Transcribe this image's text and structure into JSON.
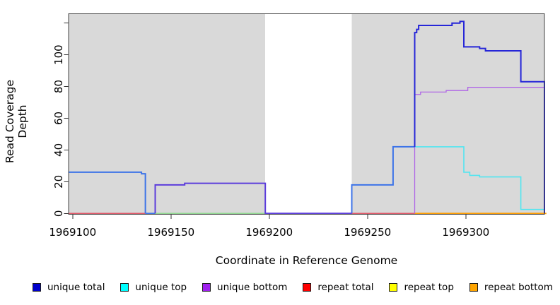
{
  "chart_data": {
    "type": "line",
    "step": true,
    "title": "",
    "xlabel": "Coordinate in Reference Genome",
    "ylabel": "Read Coverage Depth",
    "xlim": [
      1969098,
      1969340
    ],
    "ylim": [
      0,
      125
    ],
    "grid": false,
    "panel": {
      "background_color": "#d9d9d9",
      "gap_region": [
        1969198,
        1969242
      ],
      "gap_color": "#ffffff",
      "border_color": "#444444"
    },
    "x_ticks": [
      {
        "value": 1969100,
        "label": "1969100"
      },
      {
        "value": 1969150,
        "label": "1969150"
      },
      {
        "value": 1969200,
        "label": "1969200"
      },
      {
        "value": 1969250,
        "label": "1969250"
      },
      {
        "value": 1969300,
        "label": "1969300"
      }
    ],
    "y_ticks": [
      {
        "value": 0,
        "label": "0"
      },
      {
        "value": 20,
        "label": "20"
      },
      {
        "value": 40,
        "label": "40"
      },
      {
        "value": 60,
        "label": "60"
      },
      {
        "value": 80,
        "label": "80"
      },
      {
        "value": 100,
        "label": "100"
      },
      {
        "value": 120,
        "label": ""
      }
    ],
    "series": [
      {
        "name": "unique total",
        "color": "#0000cc",
        "points": [
          [
            1969098,
            26
          ],
          [
            1969135,
            25
          ],
          [
            1969137,
            0
          ],
          [
            1969198,
            0
          ],
          [
            1969242,
            18
          ],
          [
            1969263,
            42
          ],
          [
            1969274,
            114
          ],
          [
            1969275,
            116
          ],
          [
            1969277,
            118.5
          ],
          [
            1969293,
            120
          ],
          [
            1969297,
            121
          ],
          [
            1969299,
            105
          ],
          [
            1969307,
            104
          ],
          [
            1969310,
            102.5
          ],
          [
            1969328,
            83
          ],
          [
            1969340,
            0
          ]
        ]
      },
      {
        "name": "unique top",
        "color": "#00ffff",
        "points": [
          [
            1969274,
            42
          ],
          [
            1969299,
            26
          ],
          [
            1969302,
            24
          ],
          [
            1969307,
            23
          ],
          [
            1969328,
            2.5
          ],
          [
            1969340,
            2.5
          ]
        ]
      },
      {
        "name": "unique bottom",
        "color": "#a020f0",
        "points": [
          [
            1969142,
            18
          ],
          [
            1969157,
            19
          ],
          [
            1969198,
            0
          ],
          [
            1969242,
            0
          ],
          [
            1969274,
            75
          ],
          [
            1969277,
            76.5
          ],
          [
            1969290,
            77.5
          ],
          [
            1969301,
            79.5
          ],
          [
            1969340,
            79.5
          ]
        ]
      },
      {
        "name": "repeat total",
        "color": "#ff0000",
        "points": [
          [
            1969098,
            0
          ],
          [
            1969340,
            0
          ]
        ]
      },
      {
        "name": "repeat top",
        "color": "#ffff00",
        "points": [
          [
            1969142,
            0
          ],
          [
            1969198,
            0
          ]
        ]
      },
      {
        "name": "repeat bottom",
        "color": "#ffa500",
        "points": [
          [
            1969274,
            0
          ],
          [
            1969340,
            0
          ]
        ]
      }
    ],
    "rendered_segments": [
      {
        "name": "repeat-total-zero-left",
        "color": "#e05868",
        "width": 1.6,
        "points": [
          [
            1969098,
            0
          ],
          [
            1969137,
            0
          ]
        ]
      },
      {
        "name": "unique-total-zero-notch",
        "color": "#3d74e8",
        "width": 1.8,
        "points": [
          [
            1969137,
            0
          ],
          [
            1969142,
            0
          ]
        ]
      },
      {
        "name": "repeat-top-over-unique-top-zero",
        "color": "#90d890",
        "width": 1.6,
        "points": [
          [
            1969142,
            0
          ],
          [
            1969198,
            0
          ]
        ]
      },
      {
        "name": "repeat-total-zero-mid",
        "color": "#e05868",
        "width": 1.6,
        "points": [
          [
            1969242,
            0
          ],
          [
            1969274,
            0
          ]
        ]
      },
      {
        "name": "repeat-bottom-zero-right",
        "color": "#ff9d00",
        "width": 1.8,
        "points": [
          [
            1969274,
            0
          ],
          [
            1969341,
            0
          ]
        ]
      },
      {
        "name": "unique-top-steps",
        "color": "#52e5f0",
        "width": 1.6,
        "points": [
          [
            1969274,
            42
          ],
          [
            1969299,
            42
          ],
          [
            1969299,
            26
          ],
          [
            1969302,
            26
          ],
          [
            1969302,
            24
          ],
          [
            1969307,
            24
          ],
          [
            1969307,
            23
          ],
          [
            1969328,
            23
          ],
          [
            1969328,
            2.5
          ],
          [
            1969340,
            2.5
          ]
        ]
      },
      {
        "name": "unique-bottom-steps",
        "color": "#b066e6",
        "width": 1.3,
        "points": [
          [
            1969274,
            0
          ],
          [
            1969274,
            75
          ],
          [
            1969277,
            75
          ],
          [
            1969277,
            76.5
          ],
          [
            1969290,
            76.5
          ],
          [
            1969290,
            77.5
          ],
          [
            1969301,
            77.5
          ],
          [
            1969301,
            79.5
          ],
          [
            1969340,
            79.5
          ]
        ]
      },
      {
        "name": "unique-total-left-plateau",
        "color": "#3d74e8",
        "width": 2,
        "points": [
          [
            1969098,
            26
          ],
          [
            1969135,
            26
          ],
          [
            1969135,
            25
          ],
          [
            1969137,
            25
          ],
          [
            1969137,
            0
          ]
        ]
      },
      {
        "name": "unique-total-right-rise",
        "color": "#3d74e8",
        "width": 2,
        "points": [
          [
            1969242,
            0
          ],
          [
            1969242,
            18
          ],
          [
            1969263,
            18
          ],
          [
            1969263,
            42
          ],
          [
            1969274,
            42
          ]
        ]
      },
      {
        "name": "unique-total-over-bottom-mid",
        "color": "#5c3ddb",
        "width": 2,
        "points": [
          [
            1969142,
            0
          ],
          [
            1969142,
            18
          ],
          [
            1969157,
            18
          ],
          [
            1969157,
            19
          ],
          [
            1969198,
            19
          ],
          [
            1969198,
            0
          ],
          [
            1969242,
            0
          ]
        ]
      },
      {
        "name": "unique-total-peak",
        "color": "#2626d8",
        "width": 2,
        "points": [
          [
            1969274,
            42
          ],
          [
            1969274,
            114
          ],
          [
            1969275,
            114
          ],
          [
            1969275,
            116
          ],
          [
            1969276,
            116
          ],
          [
            1969276,
            118.5
          ],
          [
            1969293,
            118.5
          ],
          [
            1969293,
            120
          ],
          [
            1969297,
            120
          ],
          [
            1969297,
            121
          ],
          [
            1969299,
            121
          ],
          [
            1969299,
            105
          ],
          [
            1969307,
            105
          ],
          [
            1969307,
            104
          ],
          [
            1969310,
            104
          ],
          [
            1969310,
            102.5
          ],
          [
            1969328,
            102.5
          ],
          [
            1969328,
            83
          ],
          [
            1969340,
            83
          ],
          [
            1969340,
            0
          ]
        ]
      }
    ],
    "legend": {
      "position": "bottom",
      "items": [
        {
          "label": "unique total",
          "color": "#0000cc"
        },
        {
          "label": "unique top",
          "color": "#00ffff"
        },
        {
          "label": "unique bottom",
          "color": "#a020f0"
        },
        {
          "label": "repeat total",
          "color": "#ff0000"
        },
        {
          "label": "repeat top",
          "color": "#ffff00"
        },
        {
          "label": "repeat bottom",
          "color": "#ffa500"
        }
      ]
    }
  }
}
